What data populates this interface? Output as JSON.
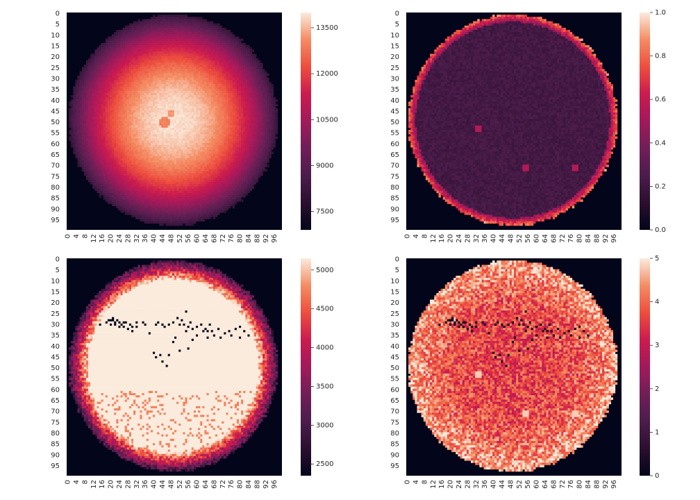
{
  "chart_data": [
    {
      "type": "heatmap",
      "title": "",
      "xlabel": "",
      "ylabel": "",
      "grid_size": 100,
      "x_ticks": [
        "0",
        "4",
        "8",
        "12",
        "16",
        "20",
        "24",
        "28",
        "32",
        "36",
        "40",
        "44",
        "48",
        "52",
        "56",
        "60",
        "64",
        "68",
        "72",
        "76",
        "80",
        "84",
        "88",
        "92",
        "96"
      ],
      "y_ticks": [
        "0",
        "5",
        "10",
        "15",
        "20",
        "25",
        "30",
        "35",
        "40",
        "45",
        "50",
        "55",
        "60",
        "65",
        "70",
        "75",
        "80",
        "85",
        "90",
        "95"
      ],
      "colorbar": {
        "min": 6900,
        "max": 14000,
        "ticks": [
          "7500",
          "9000",
          "10500",
          "12000",
          "13500"
        ],
        "tick_values": [
          7500,
          9000,
          10500,
          12000,
          13500
        ]
      },
      "background_value": 6900,
      "pattern": "radial intensity peaking near center (~13800) falling to ~8000 at the disk edge; dark features near rows 42-55",
      "grid": false,
      "legend": "colorbar right"
    },
    {
      "type": "heatmap",
      "title": "",
      "xlabel": "",
      "ylabel": "",
      "grid_size": 100,
      "x_ticks": [
        "0",
        "4",
        "8",
        "12",
        "16",
        "20",
        "24",
        "28",
        "32",
        "36",
        "40",
        "44",
        "48",
        "52",
        "56",
        "60",
        "64",
        "68",
        "72",
        "76",
        "80",
        "84",
        "88",
        "92",
        "96"
      ],
      "y_ticks": [
        "0",
        "5",
        "10",
        "15",
        "20",
        "25",
        "30",
        "35",
        "40",
        "45",
        "50",
        "55",
        "60",
        "65",
        "70",
        "75",
        "80",
        "85",
        "90",
        "95"
      ],
      "colorbar": {
        "min": 0,
        "max": 1,
        "ticks": [
          "0.0",
          "0.2",
          "0.4",
          "0.6",
          "0.8",
          "1.0"
        ],
        "tick_values": [
          0,
          0.2,
          0.4,
          0.6,
          0.8,
          1.0
        ]
      },
      "background_value": 0,
      "pattern": "uniform low values (~0.25) inside disk with bright rim (~0.6-0.8) and small bright spots near (33,53), (55,71), (78,71)",
      "grid": false,
      "legend": "colorbar right"
    },
    {
      "type": "heatmap",
      "title": "",
      "xlabel": "",
      "ylabel": "",
      "grid_size": 100,
      "x_ticks": [
        "0",
        "4",
        "8",
        "12",
        "16",
        "20",
        "24",
        "28",
        "32",
        "36",
        "40",
        "44",
        "48",
        "52",
        "56",
        "60",
        "64",
        "68",
        "72",
        "76",
        "80",
        "84",
        "88",
        "92",
        "96"
      ],
      "y_ticks": [
        "0",
        "5",
        "10",
        "15",
        "20",
        "25",
        "30",
        "35",
        "40",
        "45",
        "50",
        "55",
        "60",
        "65",
        "70",
        "75",
        "80",
        "85",
        "90",
        "95"
      ],
      "colorbar": {
        "min": 2350,
        "max": 5150,
        "ticks": [
          "2500",
          "3000",
          "3500",
          "4000",
          "4500",
          "5000"
        ],
        "tick_values": [
          2500,
          3000,
          3500,
          4000,
          4500,
          5000
        ]
      },
      "background_value": 2350,
      "pattern": "saturated high values (~5100) inside disk, decreasing to ~3000 at the rim; dark dead pixels clustered in rows 24-48",
      "grid": false,
      "legend": "colorbar right"
    },
    {
      "type": "heatmap",
      "title": "",
      "xlabel": "",
      "ylabel": "",
      "grid_size": 100,
      "x_ticks": [
        "0",
        "4",
        "8",
        "12",
        "16",
        "20",
        "24",
        "28",
        "32",
        "36",
        "40",
        "44",
        "48",
        "52",
        "56",
        "60",
        "64",
        "68",
        "72",
        "76",
        "80",
        "84",
        "88",
        "92",
        "96"
      ],
      "y_ticks": [
        "0",
        "5",
        "10",
        "15",
        "20",
        "25",
        "30",
        "35",
        "40",
        "45",
        "50",
        "55",
        "60",
        "65",
        "70",
        "75",
        "80",
        "85",
        "90",
        "95"
      ],
      "colorbar": {
        "min": 0,
        "max": 5,
        "ticks": [
          "0",
          "1",
          "2",
          "3",
          "4",
          "5"
        ],
        "tick_values": [
          0,
          1,
          2,
          3,
          4,
          5
        ]
      },
      "background_value": 0,
      "pattern": "noisy values 3-5 inside disk, higher (~4.5) toward the rim; dead pixels (0) clustered in rows 24-48; lighter spots near (33,53), (55,71), (78,71)",
      "grid": false,
      "legend": "colorbar right"
    }
  ]
}
